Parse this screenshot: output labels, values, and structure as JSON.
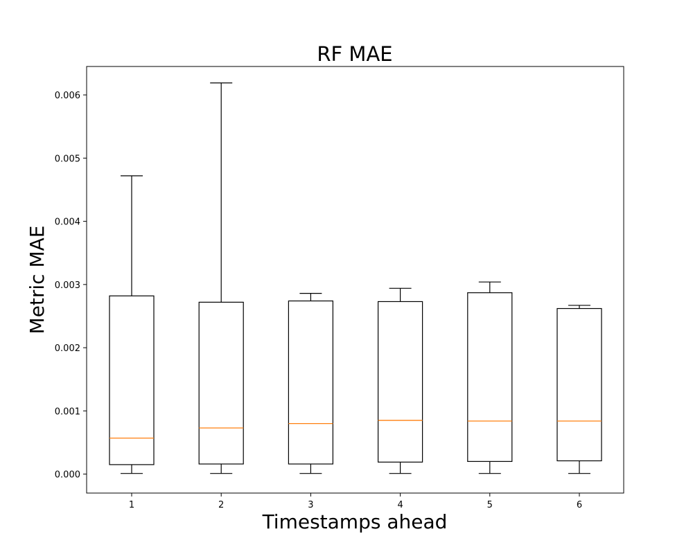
{
  "chart_data": {
    "type": "box",
    "title": "RF MAE",
    "xlabel": "Timestamps ahead",
    "ylabel": "Metric MAE",
    "categories": [
      "1",
      "2",
      "3",
      "4",
      "5",
      "6"
    ],
    "ylim": [
      -0.0003,
      0.00645
    ],
    "yticks": [
      0.0,
      0.001,
      0.002,
      0.003,
      0.004,
      0.005,
      0.006
    ],
    "ytick_labels": [
      "0.000",
      "0.001",
      "0.002",
      "0.003",
      "0.004",
      "0.005",
      "0.006"
    ],
    "grid": false,
    "boxes": [
      {
        "category": "1",
        "whisker_low": 1e-05,
        "q1": 0.00015,
        "median": 0.00057,
        "q3": 0.00282,
        "whisker_high": 0.00472
      },
      {
        "category": "2",
        "whisker_low": 1e-05,
        "q1": 0.00016,
        "median": 0.00073,
        "q3": 0.00272,
        "whisker_high": 0.00619
      },
      {
        "category": "3",
        "whisker_low": 1e-05,
        "q1": 0.00016,
        "median": 0.0008,
        "q3": 0.00274,
        "whisker_high": 0.00286
      },
      {
        "category": "4",
        "whisker_low": 1e-05,
        "q1": 0.00019,
        "median": 0.00085,
        "q3": 0.00273,
        "whisker_high": 0.00294
      },
      {
        "category": "5",
        "whisker_low": 1e-05,
        "q1": 0.0002,
        "median": 0.00084,
        "q3": 0.00287,
        "whisker_high": 0.00304
      },
      {
        "category": "6",
        "whisker_low": 1e-05,
        "q1": 0.00021,
        "median": 0.00084,
        "q3": 0.00262,
        "whisker_high": 0.00267
      }
    ],
    "colors": {
      "box": "#000000",
      "median": "#ff7f0e",
      "background": "#ffffff"
    }
  }
}
